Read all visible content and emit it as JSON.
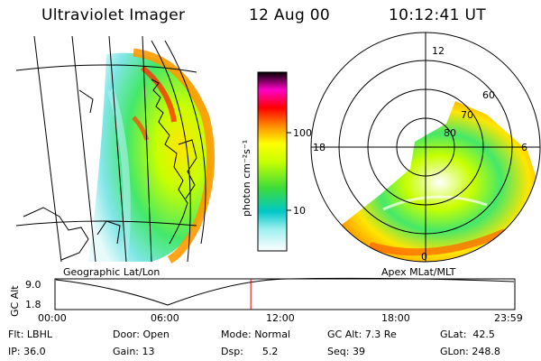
{
  "header": {
    "title": "Ultraviolet Imager",
    "date": "12 Aug 00",
    "time": "10:12:41 UT"
  },
  "colorbar": {
    "unit_label": "photon cm⁻²s⁻¹",
    "ticks": [
      "100",
      "10"
    ],
    "scale": "log",
    "colors": [
      "#ffffff",
      "#00c8c8",
      "#00ff00",
      "#ffff00",
      "#ff8c00",
      "#ff0000",
      "#ff00ff",
      "#000000"
    ]
  },
  "polar": {
    "lat_labels": [
      "80",
      "70",
      "60"
    ],
    "mlt_labels": {
      "top": "12",
      "left": "18",
      "right": "6",
      "bottom": "0"
    }
  },
  "projection_labels": {
    "left": "Geographic Lat/Lon",
    "right": "Apex MLat/MLT"
  },
  "timeline": {
    "axis_label": "GC Alt",
    "y_ticks": [
      "9.0",
      "1.8"
    ],
    "x_ticks": [
      "00:00",
      "06:00",
      "12:00",
      "18:00",
      "23:59"
    ],
    "marker_time_frac": 0.4255,
    "marker_color": "#e00000"
  },
  "info": {
    "flt": {
      "label": "Flt:",
      "value": "LBHL"
    },
    "ip": {
      "label": "IP:",
      "value": "36.0"
    },
    "door": {
      "label": "Door:",
      "value": "Open"
    },
    "gain": {
      "label": "Gain:",
      "value": "13"
    },
    "mode": {
      "label": "Mode:",
      "value": "Normal"
    },
    "dsp": {
      "label": "Dsp:",
      "value": "5.2"
    },
    "gcalt": {
      "label": "GC Alt:",
      "value": "7.3 Re"
    },
    "seq": {
      "label": "Seq:",
      "value": "39"
    },
    "glat": {
      "label": "GLat:",
      "value": "42.5"
    },
    "glon": {
      "label": "GLon:",
      "value": "248.8"
    }
  }
}
